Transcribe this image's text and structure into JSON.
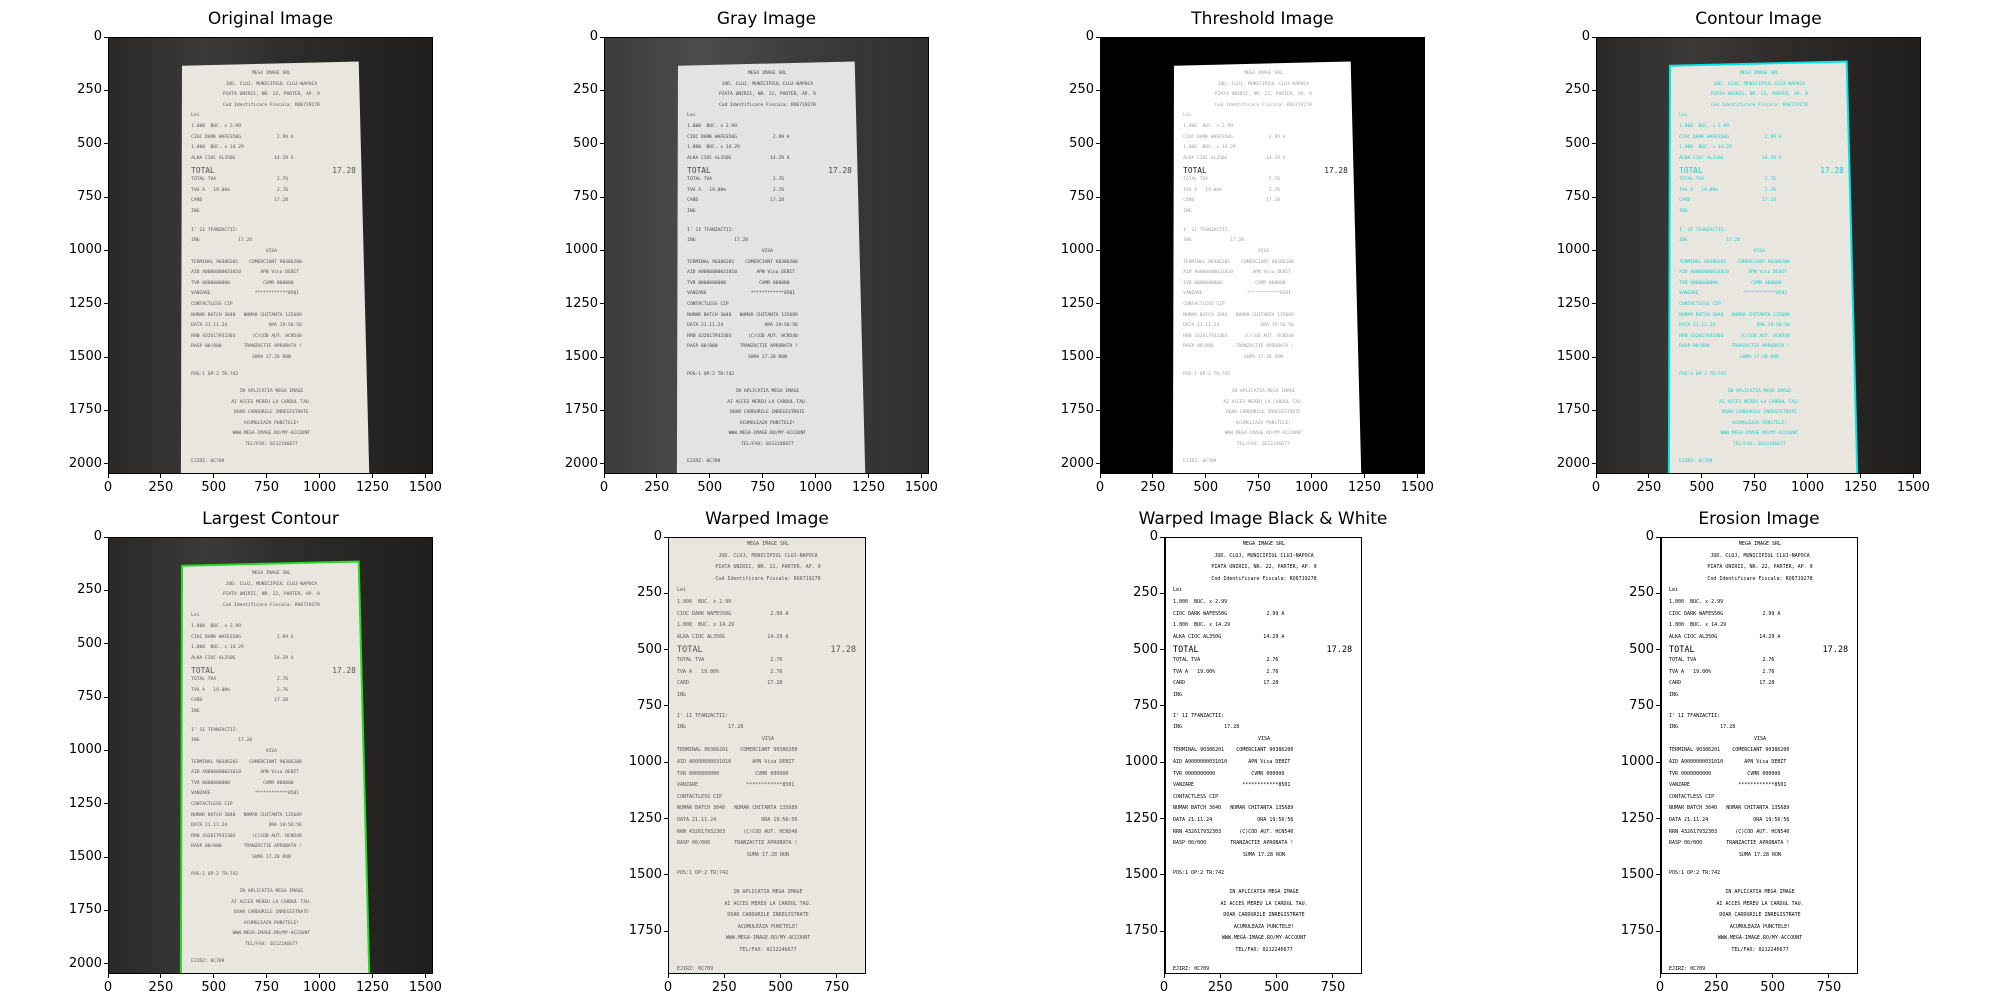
{
  "panels": [
    {
      "title": "Original Image",
      "variant": "original",
      "xticks": [
        "0",
        "250",
        "500",
        "750",
        "1000",
        "1250",
        "1500"
      ],
      "yticks": [
        "0",
        "250",
        "500",
        "750",
        "1000",
        "1250",
        "1500",
        "1750",
        "2000"
      ]
    },
    {
      "title": "Gray Image",
      "variant": "gray",
      "xticks": [
        "0",
        "250",
        "500",
        "750",
        "1000",
        "1250",
        "1500"
      ],
      "yticks": [
        "0",
        "250",
        "500",
        "750",
        "1000",
        "1250",
        "1500",
        "1750",
        "2000"
      ]
    },
    {
      "title": "Threshold Image",
      "variant": "threshold",
      "xticks": [
        "0",
        "250",
        "500",
        "750",
        "1000",
        "1250",
        "1500"
      ],
      "yticks": [
        "0",
        "250",
        "500",
        "750",
        "1000",
        "1250",
        "1500",
        "1750",
        "2000"
      ]
    },
    {
      "title": "Contour Image",
      "variant": "contour",
      "xticks": [
        "0",
        "250",
        "500",
        "750",
        "1000",
        "1250",
        "1500"
      ],
      "yticks": [
        "0",
        "250",
        "500",
        "750",
        "1000",
        "1250",
        "1500",
        "1750",
        "2000"
      ]
    },
    {
      "title": "Largest Contour",
      "variant": "largest",
      "xticks": [
        "0",
        "250",
        "500",
        "750",
        "1000",
        "1250",
        "1500"
      ],
      "yticks": [
        "0",
        "250",
        "500",
        "750",
        "1000",
        "1250",
        "1500",
        "1750",
        "2000"
      ]
    },
    {
      "title": "Warped Image",
      "variant": "warped",
      "xticks": [
        "0",
        "250",
        "500",
        "750"
      ],
      "yticks": [
        "0",
        "250",
        "500",
        "750",
        "1000",
        "1250",
        "1500",
        "1750"
      ]
    },
    {
      "title": "Warped Image Black & White",
      "variant": "warped_bw",
      "xticks": [
        "0",
        "250",
        "500",
        "750"
      ],
      "yticks": [
        "0",
        "250",
        "500",
        "750",
        "1000",
        "1250",
        "1500",
        "1750"
      ]
    },
    {
      "title": "Erosion Image",
      "variant": "erosion",
      "xticks": [
        "0",
        "250",
        "500",
        "750"
      ],
      "yticks": [
        "0",
        "250",
        "500",
        "750",
        "1000",
        "1250",
        "1500",
        "1750"
      ]
    }
  ],
  "receipt_lines": [
    "MEGA IMAGE SRL",
    "JUD. CLUJ, MUNICIPIUL CLUJ-NAPOCA",
    "PIATA UNIRII, NR. 22, PARTER, AP. 9",
    "Cod Identificare Fiscala: RO6719278",
    "Lei",
    "1.000  BUC. x 2.99",
    "CIOC DARK WAFES50G             2.99 A",
    "1.000  BUC. x 14.29",
    "ALKA CIOC AL350G              14.29 A",
    "TOTAL                         17.28",
    "TOTAL TVA                      2.76",
    "TVA A   19.00%                 2.76",
    "CARD                          17.28",
    "ING",
    "I' 1I TFANZACTII:",
    "ING              17.28",
    "VISA",
    "TERMINAL 90386201    COMERCIANT 90386200",
    "AID A0000000031010       APN Visa DEBIT",
    "TVR 0000000000            CVMR 000000",
    "VANZARE                ************8501",
    "CONTACTLESS CIP",
    "NUMAR BATCH 3040   NUMAR CHITANTA 135689",
    "DATA 21.11.24               ORA 19:56:56",
    "RRN 432617932303      (C)COD AUT. HCN540",
    "RASP 00/000        TRANZACTIE APROBATA !",
    "SUMA 17.28 RON",
    "POS:1 OP:2 TR:742",
    "IN APLICATIA MEGA IMAGE",
    "AI ACCES MEREU LA CARDUL TAU.",
    "DOAR CARDURILE INREGISTRATE",
    "ACUMULEAZA PUNCTELE!",
    "WWW.MEGA-IMAGE.RO/MY-ACCOUNT",
    "TEL/FAX: 0212246677",
    "EJIRZ: 0C709"
  ],
  "colors": {
    "contour": "#00e5e5",
    "largest_contour": "#22dd22",
    "paper": "#e9e6e0",
    "paper_gray": "#e3e3e3"
  }
}
